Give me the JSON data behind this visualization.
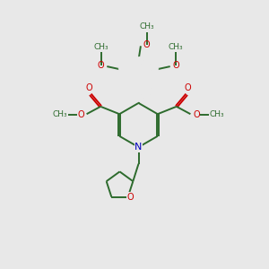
{
  "bg_color": "#e8e8e8",
  "bond_color": "#2d6b2d",
  "o_color": "#cc0000",
  "n_color": "#0000bb",
  "lw": 1.4,
  "figsize": [
    3.0,
    3.0
  ],
  "dpi": 100,
  "xlim": [
    0,
    10
  ],
  "ylim": [
    0,
    10
  ]
}
